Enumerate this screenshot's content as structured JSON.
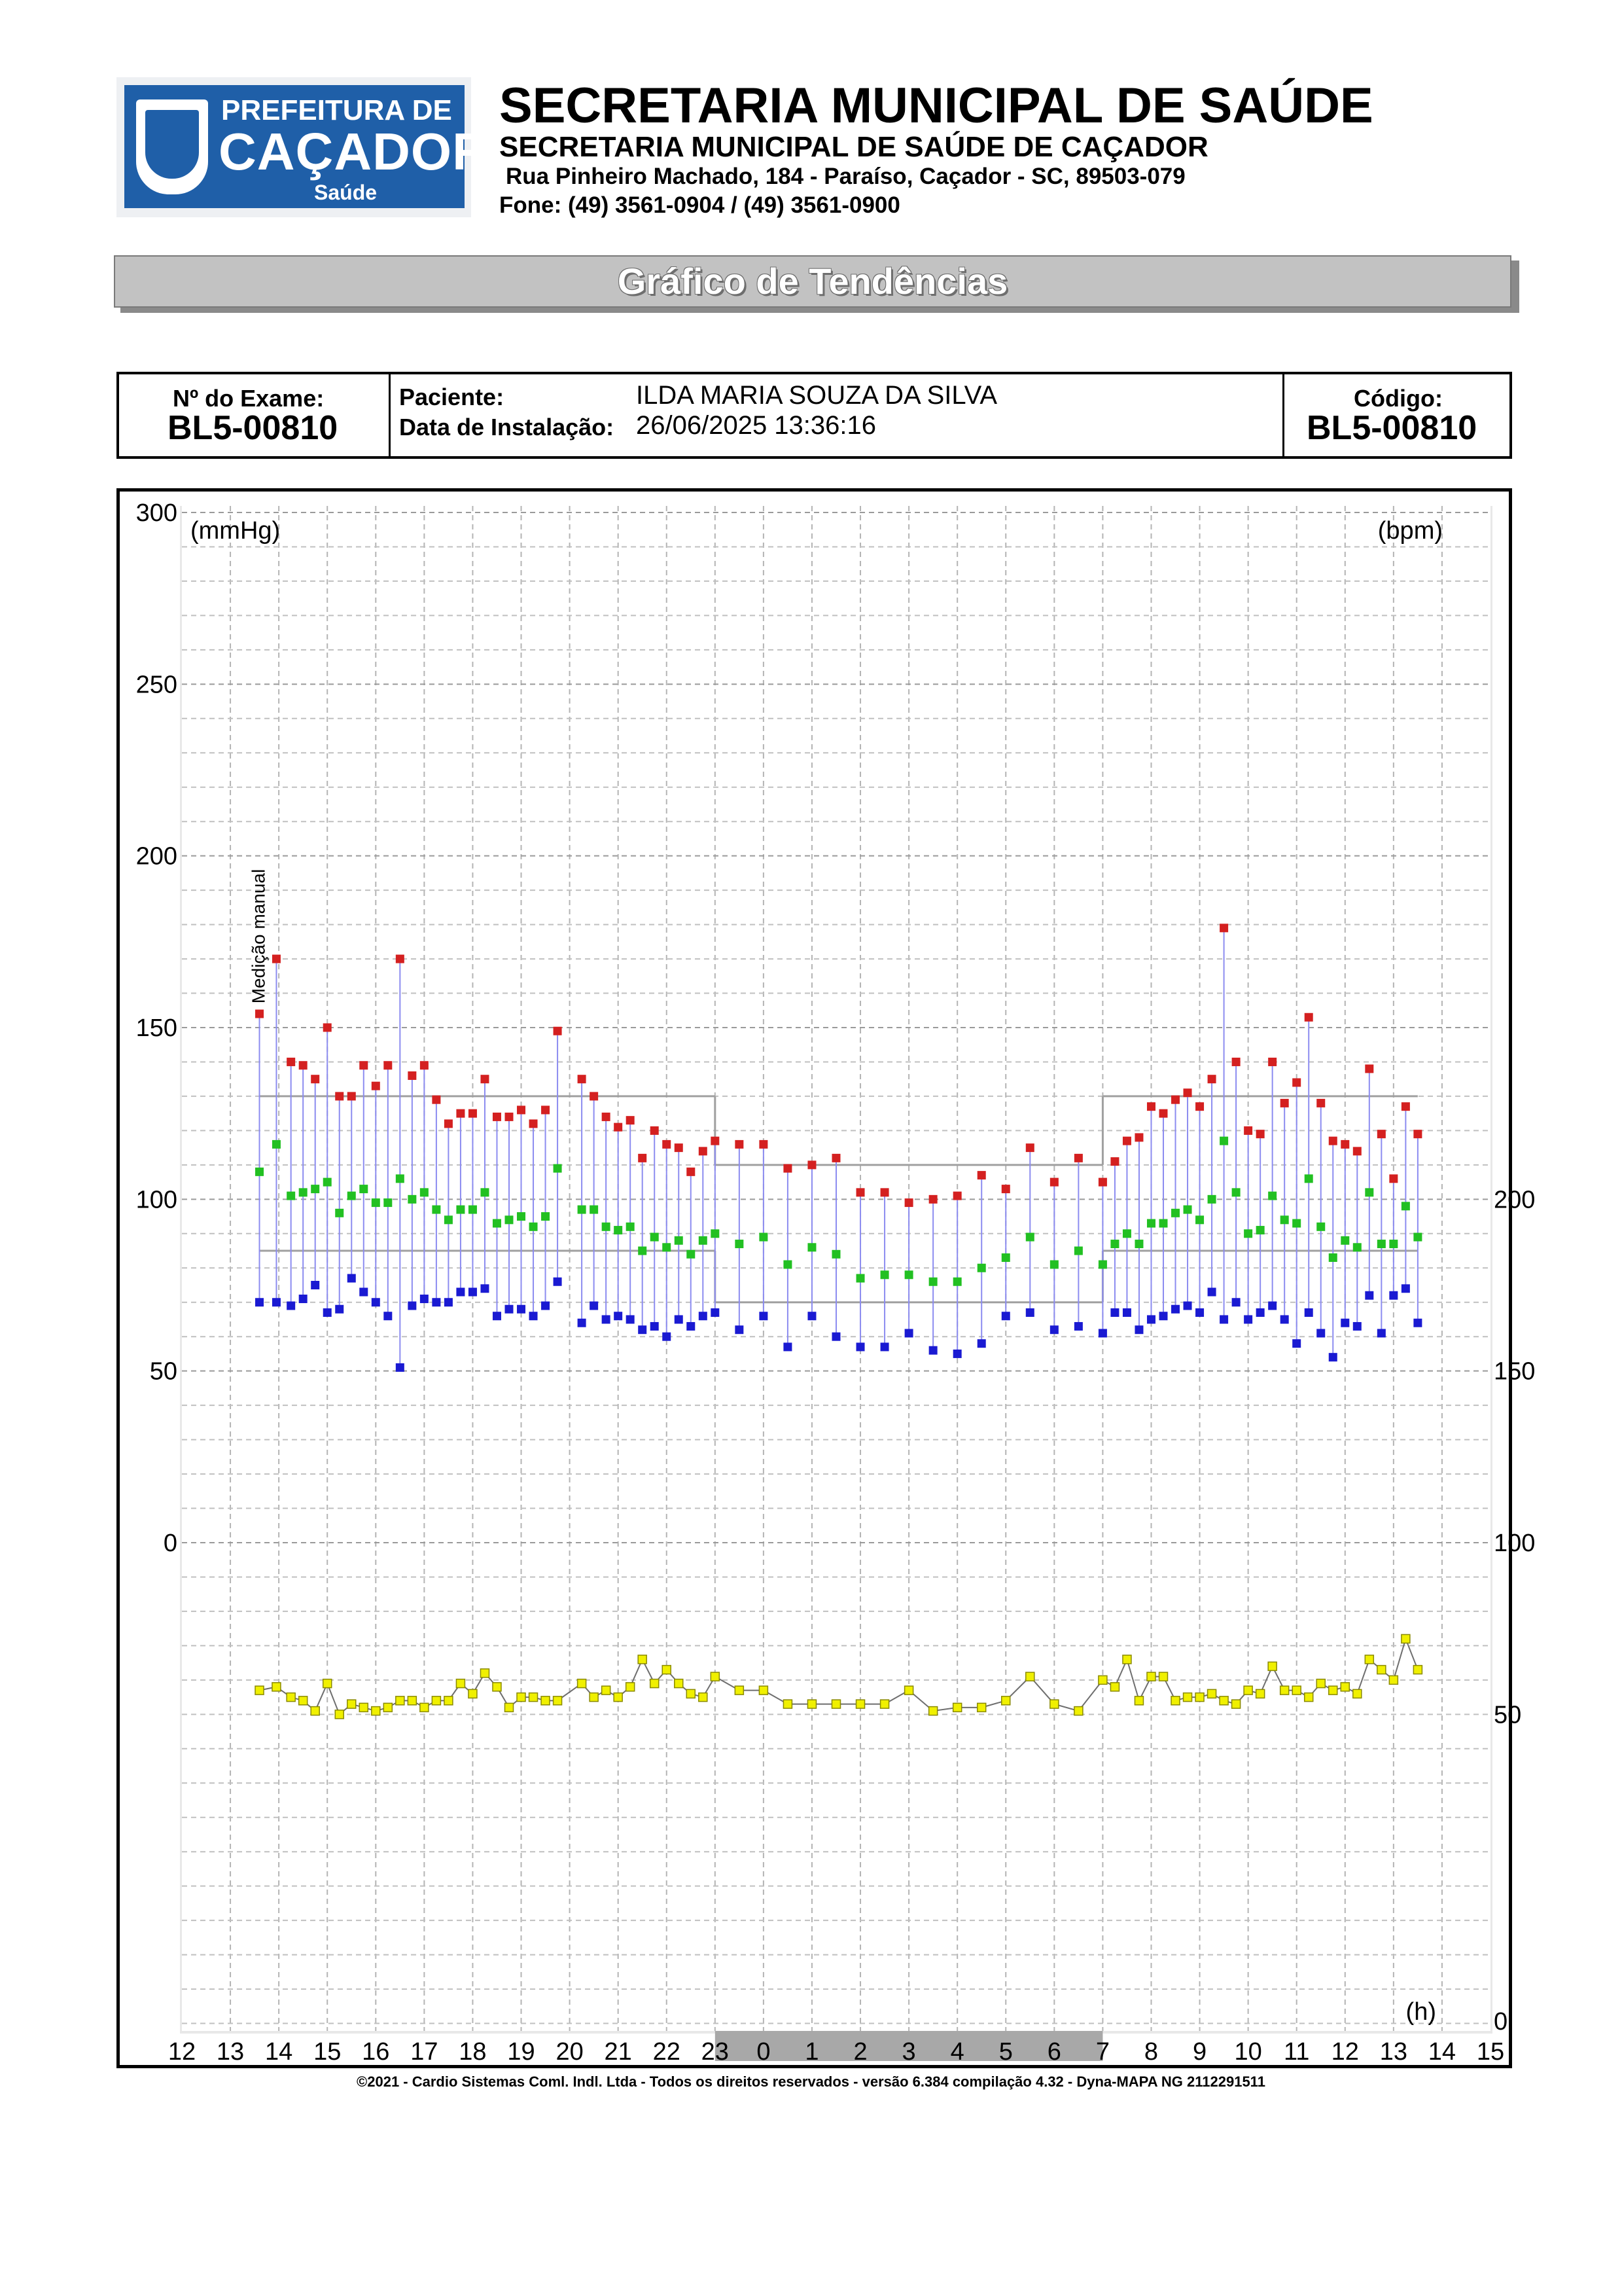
{
  "header": {
    "logo": {
      "line1": "PREFEITURA DE",
      "line2": "CAÇADOR",
      "line3": "Saúde"
    },
    "title": "SECRETARIA MUNICIPAL DE SAÚDE",
    "subtitle": "SECRETARIA MUNICIPAL DE SAÚDE DE CAÇADOR",
    "address": "Rua Pinheiro Machado, 184 - Paraíso, Caçador - SC, 89503-079",
    "phone": "Fone: (49) 3561-0904  / (49) 3561-0900"
  },
  "banner": {
    "title": "Gráfico de Tendências"
  },
  "exam": {
    "exam_label": "Nº do Exame:",
    "exam_value": "BL5-00810",
    "patient_label": "Paciente:",
    "patient_value": "ILDA MARIA SOUZA DA SILVA",
    "install_label": "Data de Instalação:",
    "install_value": "26/06/2025 13:36:16",
    "code_label": "Código:",
    "code_value": "BL5-00810"
  },
  "chart_data": {
    "type": "scatter",
    "left_unit": "(mmHg)",
    "right_unit": "(bpm)",
    "x_unit": "(h)",
    "annotation": "Medição manual",
    "x_ticks": [
      "12",
      "13",
      "14",
      "15",
      "16",
      "17",
      "18",
      "19",
      "20",
      "21",
      "22",
      "23",
      "0",
      "1",
      "2",
      "3",
      "4",
      "5",
      "6",
      "7",
      "8",
      "9",
      "10",
      "11",
      "12",
      "13",
      "14",
      "15"
    ],
    "left_ticks": [
      300,
      250,
      200,
      150,
      100,
      50,
      0
    ],
    "right_ticks": [
      200,
      150,
      100,
      50,
      0
    ],
    "sleep_period": {
      "start": "23",
      "end": "7"
    },
    "colors": {
      "systolic": "#d42020",
      "mean": "#22c022",
      "diastolic": "#1a1ad2",
      "heart_rate": "#f0f000",
      "connector": "#8c8cf0"
    },
    "reference_levels": {
      "awake": {
        "systolic": 130,
        "diastolic": 85
      },
      "sleep": {
        "systolic": 110,
        "diastolic": 70
      }
    },
    "measurements": [
      {
        "t": 13.6,
        "sys": 154,
        "mean": 108,
        "dia": 70,
        "hr": 57
      },
      {
        "t": 13.95,
        "sys": 170,
        "mean": 116,
        "dia": 70,
        "hr": 58
      },
      {
        "t": 14.25,
        "sys": 140,
        "mean": 101,
        "dia": 69,
        "hr": 55
      },
      {
        "t": 14.5,
        "sys": 139,
        "mean": 102,
        "dia": 71,
        "hr": 54
      },
      {
        "t": 14.75,
        "sys": 135,
        "mean": 103,
        "dia": 75,
        "hr": 51
      },
      {
        "t": 15.0,
        "sys": 150,
        "mean": 105,
        "dia": 67,
        "hr": 59
      },
      {
        "t": 15.25,
        "sys": 130,
        "mean": 96,
        "dia": 68,
        "hr": 50
      },
      {
        "t": 15.5,
        "sys": 130,
        "mean": 101,
        "dia": 77,
        "hr": 53
      },
      {
        "t": 15.75,
        "sys": 139,
        "mean": 103,
        "dia": 73,
        "hr": 52
      },
      {
        "t": 16.0,
        "sys": 133,
        "mean": 99,
        "dia": 70,
        "hr": 51
      },
      {
        "t": 16.25,
        "sys": 139,
        "mean": 99,
        "dia": 66,
        "hr": 52
      },
      {
        "t": 16.5,
        "sys": 170,
        "mean": 106,
        "dia": 51,
        "hr": 54
      },
      {
        "t": 16.75,
        "sys": 136,
        "mean": 100,
        "dia": 69,
        "hr": 54
      },
      {
        "t": 17.0,
        "sys": 139,
        "mean": 102,
        "dia": 71,
        "hr": 52
      },
      {
        "t": 17.25,
        "sys": 129,
        "mean": 97,
        "dia": 70,
        "hr": 54
      },
      {
        "t": 17.5,
        "sys": 122,
        "mean": 94,
        "dia": 70,
        "hr": 54
      },
      {
        "t": 17.75,
        "sys": 125,
        "mean": 97,
        "dia": 73,
        "hr": 59
      },
      {
        "t": 18.0,
        "sys": 125,
        "mean": 97,
        "dia": 73,
        "hr": 56
      },
      {
        "t": 18.25,
        "sys": 135,
        "mean": 102,
        "dia": 74,
        "hr": 62
      },
      {
        "t": 18.5,
        "sys": 124,
        "mean": 93,
        "dia": 66,
        "hr": 58
      },
      {
        "t": 18.75,
        "sys": 124,
        "mean": 94,
        "dia": 68,
        "hr": 52
      },
      {
        "t": 19.0,
        "sys": 126,
        "mean": 95,
        "dia": 68,
        "hr": 55
      },
      {
        "t": 19.25,
        "sys": 122,
        "mean": 92,
        "dia": 66,
        "hr": 55
      },
      {
        "t": 19.5,
        "sys": 126,
        "mean": 95,
        "dia": 69,
        "hr": 54
      },
      {
        "t": 19.75,
        "sys": 149,
        "mean": 109,
        "dia": 76,
        "hr": 54
      },
      {
        "t": 20.25,
        "sys": 135,
        "mean": 97,
        "dia": 64,
        "hr": 59
      },
      {
        "t": 20.5,
        "sys": 130,
        "mean": 97,
        "dia": 69,
        "hr": 55
      },
      {
        "t": 20.75,
        "sys": 124,
        "mean": 92,
        "dia": 65,
        "hr": 57
      },
      {
        "t": 21.0,
        "sys": 121,
        "mean": 91,
        "dia": 66,
        "hr": 55
      },
      {
        "t": 21.25,
        "sys": 123,
        "mean": 92,
        "dia": 65,
        "hr": 58
      },
      {
        "t": 21.5,
        "sys": 112,
        "mean": 85,
        "dia": 62,
        "hr": 66
      },
      {
        "t": 21.75,
        "sys": 120,
        "mean": 89,
        "dia": 63,
        "hr": 59
      },
      {
        "t": 22.0,
        "sys": 116,
        "mean": 86,
        "dia": 60,
        "hr": 63
      },
      {
        "t": 22.25,
        "sys": 115,
        "mean": 88,
        "dia": 65,
        "hr": 59
      },
      {
        "t": 22.5,
        "sys": 108,
        "mean": 84,
        "dia": 63,
        "hr": 56
      },
      {
        "t": 22.75,
        "sys": 114,
        "mean": 88,
        "dia": 66,
        "hr": 55
      },
      {
        "t": 23.0,
        "sys": 117,
        "mean": 90,
        "dia": 67,
        "hr": 61
      },
      {
        "t": 23.5,
        "sys": 116,
        "mean": 87,
        "dia": 62,
        "hr": 57
      },
      {
        "t": 24.0,
        "sys": 116,
        "mean": 89,
        "dia": 66,
        "hr": 57
      },
      {
        "t": 24.5,
        "sys": 109,
        "mean": 81,
        "dia": 57,
        "hr": 53
      },
      {
        "t": 25.0,
        "sys": 110,
        "mean": 86,
        "dia": 66,
        "hr": 53
      },
      {
        "t": 25.5,
        "sys": 112,
        "mean": 84,
        "dia": 60,
        "hr": 53
      },
      {
        "t": 26.0,
        "sys": 102,
        "mean": 77,
        "dia": 57,
        "hr": 53
      },
      {
        "t": 26.5,
        "sys": 102,
        "mean": 78,
        "dia": 57,
        "hr": 53
      },
      {
        "t": 27.0,
        "sys": 99,
        "mean": 78,
        "dia": 61,
        "hr": 57
      },
      {
        "t": 27.5,
        "sys": 100,
        "mean": 76,
        "dia": 56,
        "hr": 51
      },
      {
        "t": 28.0,
        "sys": 101,
        "mean": 76,
        "dia": 55,
        "hr": 52
      },
      {
        "t": 28.5,
        "sys": 107,
        "mean": 80,
        "dia": 58,
        "hr": 52
      },
      {
        "t": 29.0,
        "sys": 103,
        "mean": 83,
        "dia": 66,
        "hr": 54
      },
      {
        "t": 29.5,
        "sys": 115,
        "mean": 89,
        "dia": 67,
        "hr": 61
      },
      {
        "t": 30.0,
        "sys": 105,
        "mean": 81,
        "dia": 62,
        "hr": 53
      },
      {
        "t": 30.5,
        "sys": 112,
        "mean": 85,
        "dia": 63,
        "hr": 51
      },
      {
        "t": 31.0,
        "sys": 105,
        "mean": 81,
        "dia": 61,
        "hr": 60
      },
      {
        "t": 31.25,
        "sys": 111,
        "mean": 87,
        "dia": 67,
        "hr": 58
      },
      {
        "t": 31.5,
        "sys": 117,
        "mean": 90,
        "dia": 67,
        "hr": 66
      },
      {
        "t": 31.75,
        "sys": 118,
        "mean": 87,
        "dia": 62,
        "hr": 54
      },
      {
        "t": 32.0,
        "sys": 127,
        "mean": 93,
        "dia": 65,
        "hr": 61
      },
      {
        "t": 32.25,
        "sys": 125,
        "mean": 93,
        "dia": 66,
        "hr": 61
      },
      {
        "t": 32.5,
        "sys": 129,
        "mean": 96,
        "dia": 68,
        "hr": 54
      },
      {
        "t": 32.75,
        "sys": 131,
        "mean": 97,
        "dia": 69,
        "hr": 55
      },
      {
        "t": 33.0,
        "sys": 127,
        "mean": 94,
        "dia": 67,
        "hr": 55
      },
      {
        "t": 33.25,
        "sys": 135,
        "mean": 100,
        "dia": 73,
        "hr": 56
      },
      {
        "t": 33.5,
        "sys": 179,
        "mean": 117,
        "dia": 65,
        "hr": 54
      },
      {
        "t": 33.75,
        "sys": 140,
        "mean": 102,
        "dia": 70,
        "hr": 53
      },
      {
        "t": 34.0,
        "sys": 120,
        "mean": 90,
        "dia": 65,
        "hr": 57
      },
      {
        "t": 34.25,
        "sys": 119,
        "mean": 91,
        "dia": 67,
        "hr": 56
      },
      {
        "t": 34.5,
        "sys": 140,
        "mean": 101,
        "dia": 69,
        "hr": 64
      },
      {
        "t": 34.75,
        "sys": 128,
        "mean": 94,
        "dia": 65,
        "hr": 57
      },
      {
        "t": 35.0,
        "sys": 134,
        "mean": 93,
        "dia": 58,
        "hr": 57
      },
      {
        "t": 35.25,
        "sys": 153,
        "mean": 106,
        "dia": 67,
        "hr": 55
      },
      {
        "t": 35.5,
        "sys": 128,
        "mean": 92,
        "dia": 61,
        "hr": 59
      },
      {
        "t": 35.75,
        "sys": 117,
        "mean": 83,
        "dia": 54,
        "hr": 57
      },
      {
        "t": 36.0,
        "sys": 116,
        "mean": 88,
        "dia": 64,
        "hr": 58
      },
      {
        "t": 36.25,
        "sys": 114,
        "mean": 86,
        "dia": 63,
        "hr": 56
      },
      {
        "t": 36.5,
        "sys": 138,
        "mean": 102,
        "dia": 72,
        "hr": 66
      },
      {
        "t": 36.75,
        "sys": 119,
        "mean": 87,
        "dia": 61,
        "hr": 63
      },
      {
        "t": 37.0,
        "sys": 106,
        "mean": 87,
        "dia": 72,
        "hr": 60
      },
      {
        "t": 37.25,
        "sys": 127,
        "mean": 98,
        "dia": 74,
        "hr": 72
      },
      {
        "t": 37.5,
        "sys": 119,
        "mean": 89,
        "dia": 64,
        "hr": 63
      }
    ]
  },
  "footer": {
    "text": "©2021 - Cardio Sistemas Coml. Indl. Ltda - Todos os direitos reservados - versão 6.384 compilação 4.32 - Dyna-MAPA NG 2112291511"
  }
}
